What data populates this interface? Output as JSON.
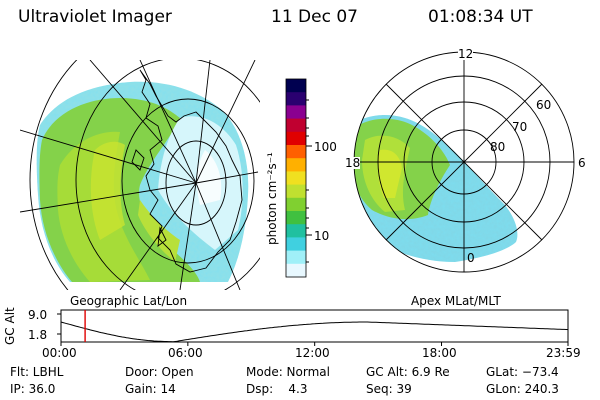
{
  "header": {
    "instrument": "Ultraviolet Imager",
    "date": "11 Dec 07",
    "time": "01:08:34 UT"
  },
  "colorbar": {
    "unit_label": "photon cm⁻²s⁻¹",
    "tick_labels": [
      "100",
      "10"
    ],
    "colors": [
      "#000050",
      "#2a0070",
      "#8a0090",
      "#c00030",
      "#e00000",
      "#ff6000",
      "#ffb000",
      "#f0e020",
      "#c0e030",
      "#80d030",
      "#40c040",
      "#20c0a0",
      "#40d0e0",
      "#a0f0f8",
      "#e8f8ff"
    ]
  },
  "geo_panel": {
    "label": "Geographic Lat/Lon"
  },
  "apex_panel": {
    "label": "Apex MLat/MLT",
    "mlt_labels": [
      "12",
      "18",
      "6",
      "0"
    ],
    "mlat_labels": [
      "60",
      "70",
      "80"
    ]
  },
  "altitude_plot": {
    "ylabel": "GC Alt",
    "y_ticks": [
      "9.0",
      "1.8"
    ],
    "x_ticks": [
      "00:00",
      "06:00",
      "12:00",
      "18:00",
      "23:59"
    ],
    "current_hour": 1.14,
    "alt_range": [
      1.8,
      9.0
    ]
  },
  "status": {
    "filter": "Flt: LBHL",
    "ip": "IP: 36.0",
    "door": "Door: Open",
    "gain": "Gain: 14",
    "mode": "Mode: Normal",
    "dsp": "Dsp:    4.3",
    "gc_alt": "GC Alt: 6.9 Re",
    "seq": "Seq: 39",
    "glat": "GLat: −73.4",
    "glon": "GLon: 240.3"
  }
}
